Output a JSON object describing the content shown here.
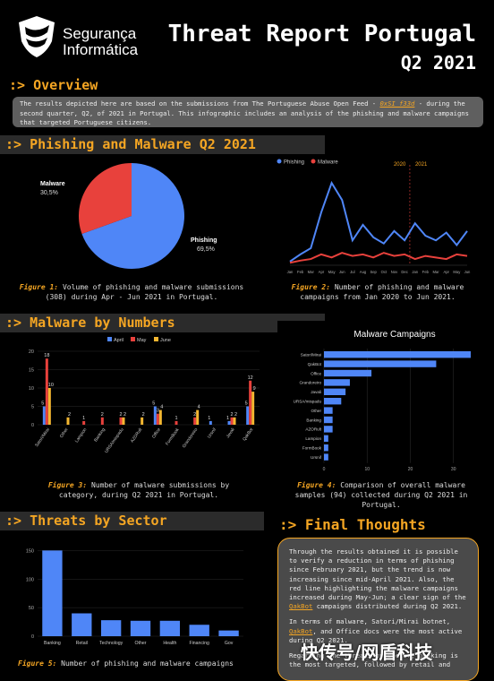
{
  "header": {
    "logo_line1": "Segurança",
    "logo_line2": "Informática",
    "title_line1": "Threat Report Portugal",
    "title_line2": "Q2 2021"
  },
  "overview": {
    "heading": ":> Overview",
    "text_before": "The results depicted here are based on the submissions from The Portuguese Abuse Open Feed - ",
    "feed_link": "0xSI_f33d",
    "text_after": " - during the second quarter, Q2, of 2021 in Portugal. This infographic includes an analysis of the phishing and malware campaigns that targeted Portuguese citizens."
  },
  "sections": {
    "phishing": ":> Phishing and Malware Q2 2021",
    "malware": ":> Malware by Numbers",
    "threats": ":> Threats by Sector",
    "final": ":> Final Thoughts"
  },
  "captions": {
    "fig1_label": "Figure 1:",
    "fig1_text": " Volume of phishing and malware submissions (308) during Apr - Jun 2021 in Portugal.",
    "fig2_label": "Figure 2:",
    "fig2_text": " Number of phishing and malware campaigns from Jan 2020 to Jun 2021.",
    "fig3_label": "Figure 3:",
    "fig3_text": " Number of malware submissions by category, during Q2 2021 in Portugal.",
    "fig4_label": "Figure 4:",
    "fig4_text": " Comparison of overall malware samples (94) collected during Q2 2021 in Portugal.",
    "fig5_label": "Figure 5:",
    "fig5_text": " Number of phishing and malware campaigns"
  },
  "final_thoughts": {
    "p1_a": "Through the results obtained it is possible to verify a reduction in terms of phishing since February 2021, but the trend is now increasing since mid-April 2021. Also, the red line highlighting the malware campaigns increased during May-Jun; a clear sign of the ",
    "p1_link": "QakBot",
    "p1_b": " campaigns distributed during Q2 2021.",
    "p2_a": "In terms of malware, Satori/Mirai botnet, ",
    "p2_link": "QakBot",
    "p2_b": ", and Office docs were the most active during Q2 2021.",
    "p3": "Regarding the threats by sector, banking is the most targeted, followed by retail and"
  },
  "watermark": "快传号/网盾科技",
  "chart_data": [
    {
      "type": "pie",
      "slices": [
        {
          "label": "Phishing",
          "value": 69.5,
          "display": "69,5%",
          "color": "#4f86f7"
        },
        {
          "label": "Malware",
          "value": 30.5,
          "display": "30,5%",
          "color": "#e8413c"
        }
      ],
      "total": 308
    },
    {
      "type": "line",
      "annotations": [
        "2020",
        "2021"
      ],
      "x": [
        "Jan",
        "Feb",
        "Mar",
        "Apr",
        "May",
        "Jun",
        "Jul",
        "Aug",
        "Sep",
        "Oct",
        "Nov",
        "Dec",
        "Jan",
        "Feb",
        "Mar",
        "Apr",
        "May",
        "Jun"
      ],
      "series": [
        {
          "name": "Phishing",
          "color": "#4f86f7",
          "values": [
            12,
            35,
            55,
            170,
            265,
            210,
            80,
            130,
            90,
            70,
            110,
            80,
            135,
            95,
            80,
            105,
            65,
            110
          ]
        },
        {
          "name": "Malware",
          "color": "#e8413c",
          "values": [
            8,
            15,
            20,
            35,
            25,
            40,
            30,
            35,
            25,
            40,
            30,
            35,
            20,
            30,
            25,
            20,
            35,
            30
          ]
        }
      ],
      "ylim": [
        0,
        300
      ]
    },
    {
      "type": "bar",
      "categories": [
        "Satori/Mirai",
        "Other",
        "Lampion",
        "Banking",
        "URSA/mispadu",
        "AZORult",
        "Office",
        "FormBook",
        "Grandoreiro",
        "Ursnif",
        "Javali",
        "QakBot"
      ],
      "series": [
        {
          "name": "April",
          "color": "#4f86f7",
          "values": [
            5,
            0,
            0,
            0,
            0,
            0,
            5,
            0,
            0,
            1,
            1,
            5
          ]
        },
        {
          "name": "May",
          "color": "#e8413c",
          "values": [
            18,
            0,
            1,
            2,
            2,
            0,
            3,
            1,
            2,
            0,
            2,
            12
          ]
        },
        {
          "name": "June",
          "color": "#f5b731",
          "values": [
            10,
            2,
            0,
            0,
            2,
            2,
            4,
            0,
            4,
            0,
            2,
            9
          ]
        }
      ],
      "labels": [
        [
          "5",
          "18",
          "10"
        ],
        [
          "",
          "",
          "2"
        ],
        [
          "",
          "1",
          ""
        ],
        [
          "",
          "2",
          ""
        ],
        [
          "",
          "2",
          "2"
        ],
        [
          "",
          "",
          "2"
        ],
        [
          "5",
          "3",
          "4"
        ],
        [
          "",
          "1",
          ""
        ],
        [
          "",
          "2",
          "4"
        ],
        [
          "1",
          "",
          ""
        ],
        [
          "1",
          "2",
          "2"
        ],
        [
          "5",
          "12",
          "9"
        ]
      ],
      "ylim": [
        0,
        20
      ],
      "yticks": [
        0,
        5,
        10,
        15,
        20
      ]
    },
    {
      "type": "bar",
      "orientation": "horizontal",
      "title": "Malware Campaigns",
      "categories": [
        "Satori/Mirai",
        "QakBot",
        "Office",
        "Grandoreiro",
        "Javali",
        "URSA/mispadu",
        "Other",
        "Banking",
        "AZORult",
        "Lampion",
        "FormBook",
        "Ursnif"
      ],
      "values": [
        34,
        26,
        11,
        6,
        5,
        4,
        2,
        2,
        2,
        1,
        1,
        1
      ],
      "color": "#4f86f7",
      "xticks": [
        0,
        10,
        20,
        30
      ]
    },
    {
      "type": "bar",
      "categories": [
        "Banking",
        "Retail",
        "Technology",
        "Other",
        "Health",
        "Financing",
        "Gov"
      ],
      "values": [
        150,
        40,
        28,
        27,
        27,
        20,
        10
      ],
      "color": "#4f86f7",
      "yticks": [
        0,
        50,
        100,
        150
      ],
      "ylim": [
        0,
        160
      ]
    }
  ]
}
